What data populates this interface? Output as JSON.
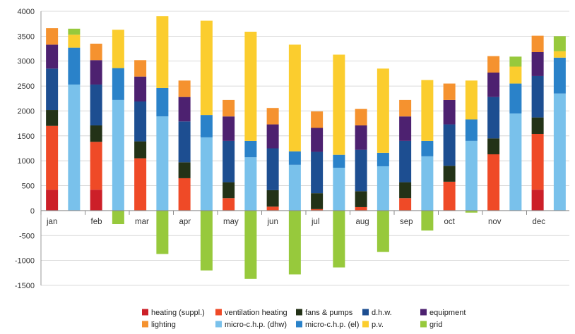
{
  "chart_data": {
    "type": "bar",
    "stacked": true,
    "title": "",
    "xlabel": "",
    "ylabel": "",
    "ylim": [
      -1500,
      4000
    ],
    "yticks": [
      4000,
      3500,
      3000,
      2500,
      2000,
      1500,
      1000,
      500,
      0,
      -500,
      -1000,
      -1500
    ],
    "yticks_text": [
      "4000",
      "3500",
      "3000",
      "2500",
      "2000",
      "1500",
      "1000",
      "500",
      "0",
      "-500",
      "-1000",
      "-1500"
    ],
    "grid": "horizontal",
    "legend_position": "bottom",
    "months": [
      "jan",
      "feb",
      "mar",
      "apr",
      "may",
      "jun",
      "jul",
      "aug",
      "sep",
      "oct",
      "nov",
      "dec"
    ],
    "bar_groups": [
      "demand",
      "supply"
    ],
    "series": [
      {
        "name": "heating (suppl.)",
        "color": "#cc1f28",
        "group": "demand",
        "values": [
          420,
          420,
          0,
          0,
          0,
          0,
          0,
          0,
          0,
          0,
          0,
          420
        ]
      },
      {
        "name": "ventilation heating",
        "color": "#ef4a27",
        "group": "demand",
        "values": [
          1280,
          960,
          1050,
          650,
          250,
          80,
          30,
          70,
          250,
          580,
          1130,
          1120
        ]
      },
      {
        "name": "fans & pumps",
        "color": "#233217",
        "group": "demand",
        "values": [
          320,
          330,
          340,
          320,
          320,
          330,
          320,
          320,
          320,
          320,
          320,
          330
        ]
      },
      {
        "name": "d.h.w.",
        "color": "#1d4e91",
        "group": "demand",
        "values": [
          830,
          820,
          800,
          820,
          830,
          840,
          830,
          830,
          830,
          830,
          830,
          830
        ]
      },
      {
        "name": "equipment",
        "color": "#4d2170",
        "group": "demand",
        "values": [
          480,
          490,
          500,
          490,
          490,
          480,
          480,
          490,
          490,
          490,
          490,
          480
        ]
      },
      {
        "name": "lighting",
        "color": "#f5922f",
        "group": "demand",
        "values": [
          330,
          330,
          330,
          330,
          330,
          330,
          330,
          330,
          330,
          330,
          330,
          330
        ]
      },
      {
        "name": "micro-c.h.p. (dhw)",
        "color": "#79c1eb",
        "group": "supply",
        "values": [
          2530,
          2220,
          1890,
          1470,
          1070,
          920,
          860,
          890,
          1090,
          1400,
          1950,
          2350
        ]
      },
      {
        "name": "micro-c.h.p. (el)",
        "color": "#2a82c9",
        "group": "supply",
        "values": [
          740,
          640,
          570,
          450,
          330,
          270,
          260,
          270,
          310,
          430,
          600,
          720
        ]
      },
      {
        "name": "p.v.",
        "color": "#fbcd2e",
        "group": "supply",
        "values": [
          260,
          770,
          1440,
          1890,
          2190,
          2140,
          2010,
          1690,
          1220,
          780,
          340,
          130
        ]
      },
      {
        "name": "grid",
        "color": "#97c93c",
        "group": "supply",
        "values": [
          120,
          -270,
          -870,
          -1200,
          -1370,
          -1280,
          -1140,
          -830,
          -400,
          -40,
          200,
          300
        ]
      }
    ]
  }
}
